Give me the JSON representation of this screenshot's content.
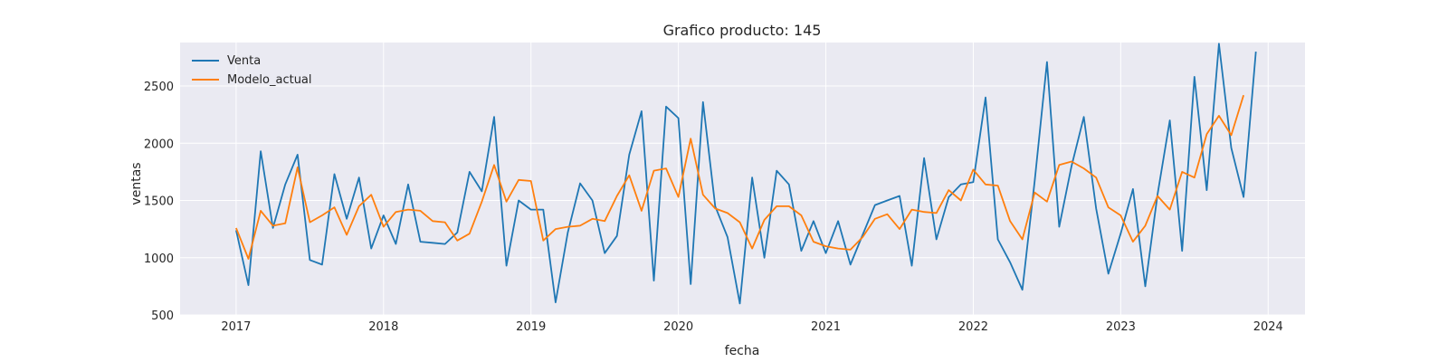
{
  "chart_data": {
    "type": "line",
    "title": "Grafico producto: 145",
    "xlabel": "fecha",
    "ylabel": "ventas",
    "xlim": [
      2016.62,
      2024.25
    ],
    "ylim": [
      500,
      2880
    ],
    "x_ticks": [
      2017,
      2018,
      2019,
      2020,
      2021,
      2022,
      2023,
      2024
    ],
    "x_tick_labels": [
      "2017",
      "2018",
      "2019",
      "2020",
      "2021",
      "2022",
      "2023",
      "2024"
    ],
    "y_ticks": [
      500,
      1000,
      1500,
      2000,
      2500
    ],
    "y_tick_labels": [
      "500",
      "1000",
      "1500",
      "2000",
      "2500"
    ],
    "grid": true,
    "legend_position": "upper-left",
    "x_start": 2017.0,
    "x_step": 0.08333,
    "series": [
      {
        "name": "Venta",
        "color": "#1f77b4",
        "values": [
          1240,
          760,
          1930,
          1260,
          1640,
          1900,
          980,
          940,
          1730,
          1340,
          1700,
          1080,
          1370,
          1120,
          1640,
          1140,
          1130,
          1120,
          1220,
          1750,
          1580,
          2230,
          930,
          1500,
          1420,
          1420,
          610,
          1220,
          1650,
          1500,
          1040,
          1190,
          1900,
          2280,
          800,
          2320,
          2220,
          770,
          2360,
          1450,
          1180,
          600,
          1700,
          1000,
          1760,
          1640,
          1060,
          1320,
          1040,
          1320,
          940,
          1200,
          1460,
          1500,
          1540,
          930,
          1870,
          1160,
          1530,
          1640,
          1660,
          2400,
          1160,
          960,
          720,
          1670,
          2710,
          1270,
          1800,
          2230,
          1430,
          860,
          1210,
          1600,
          750,
          1550,
          2200,
          1060,
          2580,
          1590,
          2870,
          1960,
          1530,
          2800
        ]
      },
      {
        "name": "Modelo_actual",
        "color": "#ff7f0e",
        "values": [
          1260,
          990,
          1410,
          1280,
          1300,
          1790,
          1310,
          1370,
          1440,
          1200,
          1450,
          1550,
          1270,
          1400,
          1420,
          1410,
          1320,
          1310,
          1150,
          1210,
          1490,
          1810,
          1490,
          1680,
          1670,
          1150,
          1250,
          1270,
          1280,
          1340,
          1320,
          1540,
          1720,
          1410,
          1760,
          1780,
          1530,
          2040,
          1550,
          1430,
          1390,
          1310,
          1080,
          1330,
          1450,
          1450,
          1370,
          1140,
          1100,
          1080,
          1070,
          1180,
          1340,
          1380,
          1250,
          1420,
          1400,
          1390,
          1590,
          1500,
          1770,
          1640,
          1630,
          1320,
          1160,
          1570,
          1490,
          1810,
          1840,
          1780,
          1700,
          1440,
          1370,
          1140,
          1280,
          1540,
          1420,
          1750,
          1700,
          2080,
          2240,
          2070,
          2420
        ]
      }
    ]
  }
}
